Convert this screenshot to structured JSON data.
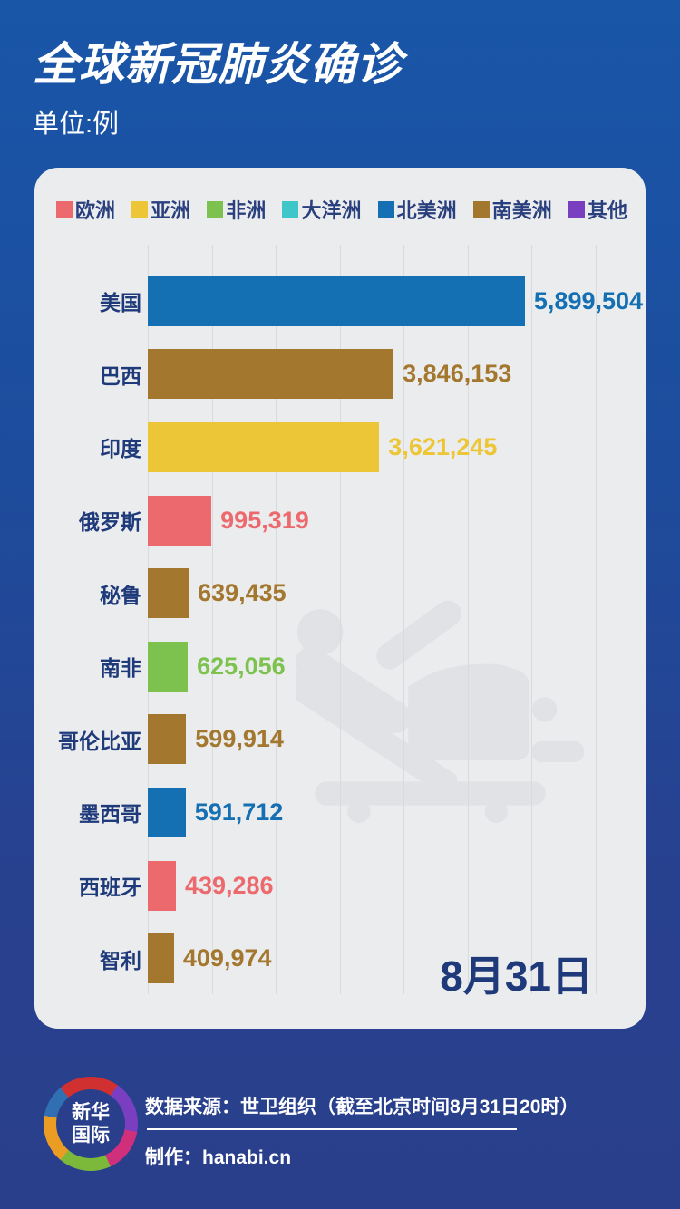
{
  "page": {
    "title": "全球新冠肺炎确诊",
    "subtitle": "单位:例",
    "date_annotation": "8月31日"
  },
  "colors": {
    "europe": "#ec6a6d",
    "asia": "#ecc636",
    "africa": "#7dc24e",
    "oceania": "#3fc6c9",
    "north_america": "#1470b2",
    "south_america": "#a4772e",
    "other": "#7a3fc0",
    "label_navy": "#1f3a7a",
    "card_bg": "#ebecee",
    "background_top": "#1956a8",
    "background_bottom": "#2a3f8b"
  },
  "chart_data": {
    "type": "bar",
    "orientation": "horizontal",
    "title": "全球新冠肺炎确诊",
    "unit_label": "单位:例",
    "legend_position": "top",
    "grid": true,
    "axis": {
      "min": 0,
      "max": 7000000,
      "gridline_interval": 1000000,
      "gridlines": 8
    },
    "legend": [
      {
        "label": "欧洲",
        "color_key": "europe"
      },
      {
        "label": "亚洲",
        "color_key": "asia"
      },
      {
        "label": "非洲",
        "color_key": "africa"
      },
      {
        "label": "大洋洲",
        "color_key": "oceania"
      },
      {
        "label": "北美洲",
        "color_key": "north_america"
      },
      {
        "label": "南美洲",
        "color_key": "south_america"
      },
      {
        "label": "其他",
        "color_key": "other"
      }
    ],
    "rows": [
      {
        "label": "美国",
        "value": 5899504,
        "display": "5,899,504",
        "color_key": "north_america"
      },
      {
        "label": "巴西",
        "value": 3846153,
        "display": "3,846,153",
        "color_key": "south_america"
      },
      {
        "label": "印度",
        "value": 3621245,
        "display": "3,621,245",
        "color_key": "asia"
      },
      {
        "label": "俄罗斯",
        "value": 995319,
        "display": "995,319",
        "color_key": "europe"
      },
      {
        "label": "秘鲁",
        "value": 639435,
        "display": "639,435",
        "color_key": "south_america"
      },
      {
        "label": "南非",
        "value": 625056,
        "display": "625,056",
        "color_key": "africa"
      },
      {
        "label": "哥伦比亚",
        "value": 599914,
        "display": "599,914",
        "color_key": "south_america"
      },
      {
        "label": "墨西哥",
        "value": 591712,
        "display": "591,712",
        "color_key": "north_america"
      },
      {
        "label": "西班牙",
        "value": 439286,
        "display": "439,286",
        "color_key": "europe"
      },
      {
        "label": "智利",
        "value": 409974,
        "display": "409,974",
        "color_key": "south_america"
      }
    ],
    "annotation": "8月31日"
  },
  "footer": {
    "logo_line1": "新华",
    "logo_line2": "国际",
    "source": "数据来源：世卫组织（截至北京时间8月31日20时）",
    "credit": "制作：hanabi.cn"
  }
}
